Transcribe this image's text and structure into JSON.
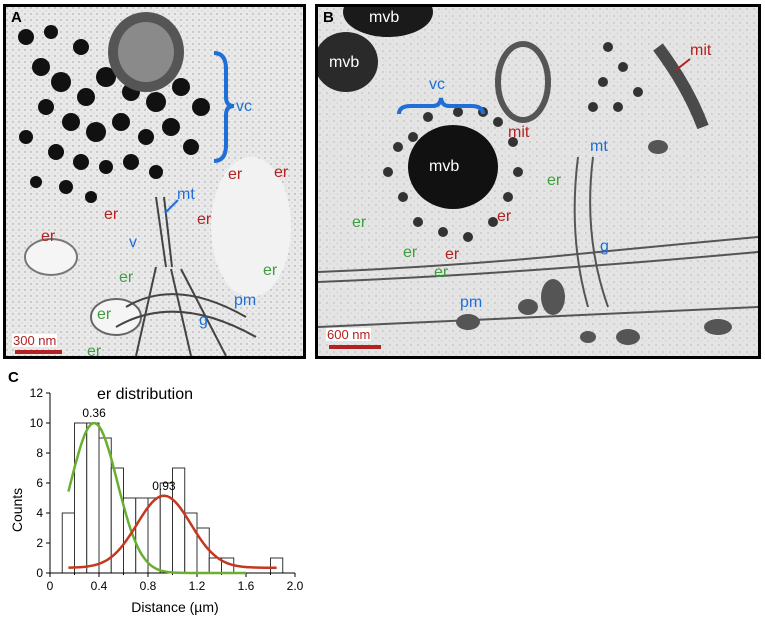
{
  "panels": {
    "a": {
      "letter": "A",
      "scale_bar": "300 nm",
      "labels": {
        "vc": "vc",
        "er1": "er",
        "er2": "er",
        "er3": "er",
        "er4": "er",
        "er5": "er",
        "mt": "mt",
        "v": "v",
        "er_g1": "er",
        "er_g2": "er",
        "er_g3": "er",
        "er_g4": "er",
        "pm": "pm",
        "g": "g"
      }
    },
    "b": {
      "letter": "B",
      "scale_bar": "600 nm",
      "labels": {
        "mvb1": "mvb",
        "mvb2": "mvb",
        "mvb3": "mvb",
        "vc": "vc",
        "mit1": "mit",
        "mit2": "mit",
        "mt": "mt",
        "er_g1": "er",
        "er_g2": "er",
        "er_g3": "er",
        "er_g4": "er",
        "er_r1": "er",
        "er_r2": "er",
        "g": "g",
        "pm": "pm"
      }
    },
    "c": {
      "letter": "C"
    }
  },
  "colors": {
    "red": "#b22222",
    "green": "#3f9e3f",
    "blue": "#1f6fd6"
  },
  "chart_data": {
    "type": "bar",
    "title": "er distribution",
    "xlabel": "Distance (µm)",
    "ylabel": "Counts",
    "xlim": [
      0,
      2.0
    ],
    "ylim": [
      0,
      12
    ],
    "xticks": [
      "0",
      "0.4",
      "0.8",
      "1.2",
      "1.6",
      "2.0"
    ],
    "yticks": [
      "0",
      "2",
      "4",
      "6",
      "8",
      "10",
      "12"
    ],
    "bin_width": 0.1,
    "bin_starts": [
      0.1,
      0.2,
      0.3,
      0.4,
      0.5,
      0.6,
      0.7,
      0.8,
      0.9,
      1.0,
      1.1,
      1.2,
      1.3,
      1.4,
      1.5,
      1.6,
      1.7,
      1.8
    ],
    "values": [
      4,
      10,
      10,
      9,
      7,
      5,
      5,
      5,
      6,
      7,
      4,
      3,
      1,
      1,
      0,
      0,
      0,
      1
    ],
    "fits": [
      {
        "color": "#6aaf2f",
        "peak_label": "0.36",
        "center": 0.36,
        "amplitude": 10.0,
        "sigma": 0.19,
        "baseline": 0.0,
        "x_range": [
          0.15,
          1.6
        ]
      },
      {
        "color": "#c4381f",
        "peak_label": "0.93",
        "center": 0.93,
        "amplitude": 4.8,
        "sigma": 0.22,
        "baseline": 0.35,
        "x_range": [
          0.15,
          1.85
        ]
      }
    ]
  }
}
